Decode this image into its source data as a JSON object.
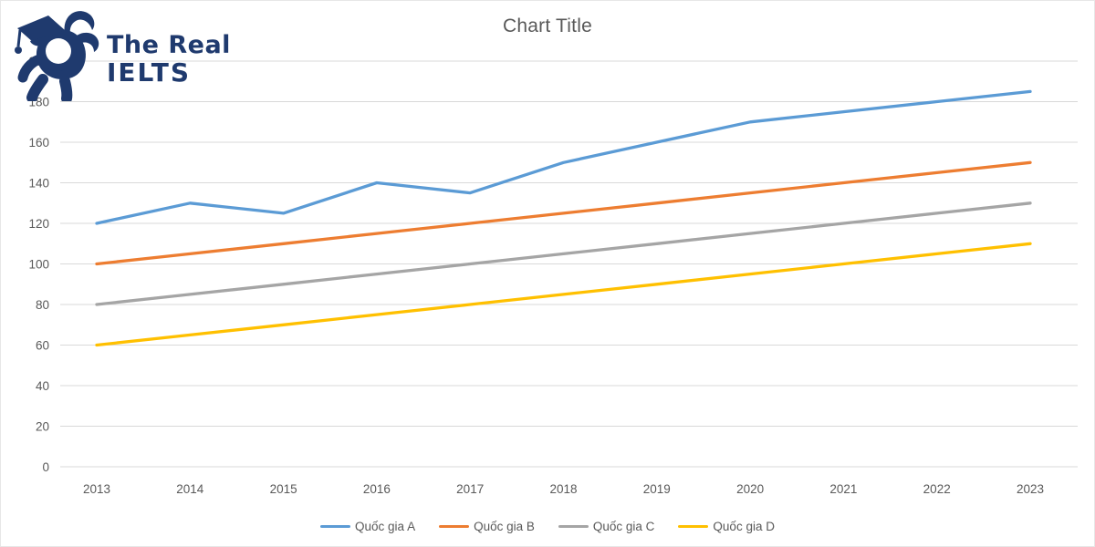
{
  "logo": {
    "line1": "The Real",
    "line2": "IELTS",
    "color": "#1f3a6e"
  },
  "chart_data": {
    "type": "line",
    "title": "Chart Title",
    "title_color": "#595959",
    "categories": [
      2013,
      2014,
      2015,
      2016,
      2017,
      2018,
      2019,
      2020,
      2021,
      2022,
      2023
    ],
    "series": [
      {
        "name": "Quốc gia A",
        "color": "#5B9BD5",
        "values": [
          120,
          130,
          125,
          140,
          135,
          150,
          160,
          170,
          175,
          180,
          185
        ]
      },
      {
        "name": "Quốc gia B",
        "color": "#ED7D31",
        "values": [
          100,
          105,
          110,
          115,
          120,
          125,
          130,
          135,
          140,
          145,
          150
        ]
      },
      {
        "name": "Quốc gia C",
        "color": "#A5A5A5",
        "values": [
          80,
          85,
          90,
          95,
          100,
          105,
          110,
          115,
          120,
          125,
          130
        ]
      },
      {
        "name": "Quốc gia D",
        "color": "#FFC000",
        "values": [
          60,
          65,
          70,
          75,
          80,
          85,
          90,
          95,
          100,
          105,
          110
        ]
      }
    ],
    "ylim": [
      0,
      200
    ],
    "yticks": [
      0,
      20,
      40,
      60,
      80,
      100,
      120,
      140,
      160,
      180,
      200
    ],
    "grid": "horizontal",
    "gridline_color": "#d9d9d9",
    "tick_label_color": "#595959",
    "legend_position": "bottom",
    "xlabel": "",
    "ylabel": ""
  }
}
